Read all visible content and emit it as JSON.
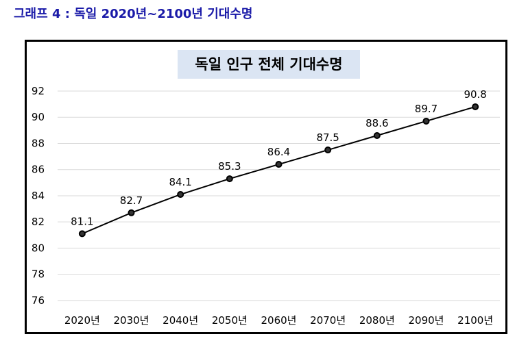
{
  "caption": "그래프 4 : 독일 2020년~2100년 기대수명",
  "chart_data": {
    "type": "line",
    "title": "독일 인구 전체 기대수명",
    "categories": [
      "2020년",
      "2030년",
      "2040년",
      "2050년",
      "2060년",
      "2070년",
      "2080년",
      "2090년",
      "2100년"
    ],
    "series": [
      {
        "values": [
          81.1,
          82.7,
          84.1,
          85.3,
          86.4,
          87.5,
          88.6,
          89.7,
          90.8
        ]
      }
    ],
    "data_labels": [
      "81.1",
      "82.7",
      "84.1",
      "85.3",
      "86.4",
      "87.5",
      "88.6",
      "89.7",
      "90.8"
    ],
    "yticks": [
      "76",
      "78",
      "80",
      "82",
      "84",
      "86",
      "88",
      "90",
      "92"
    ],
    "ylim": [
      75,
      92
    ],
    "grid": true,
    "line_color": "#000000",
    "marker_color": "#000000"
  }
}
